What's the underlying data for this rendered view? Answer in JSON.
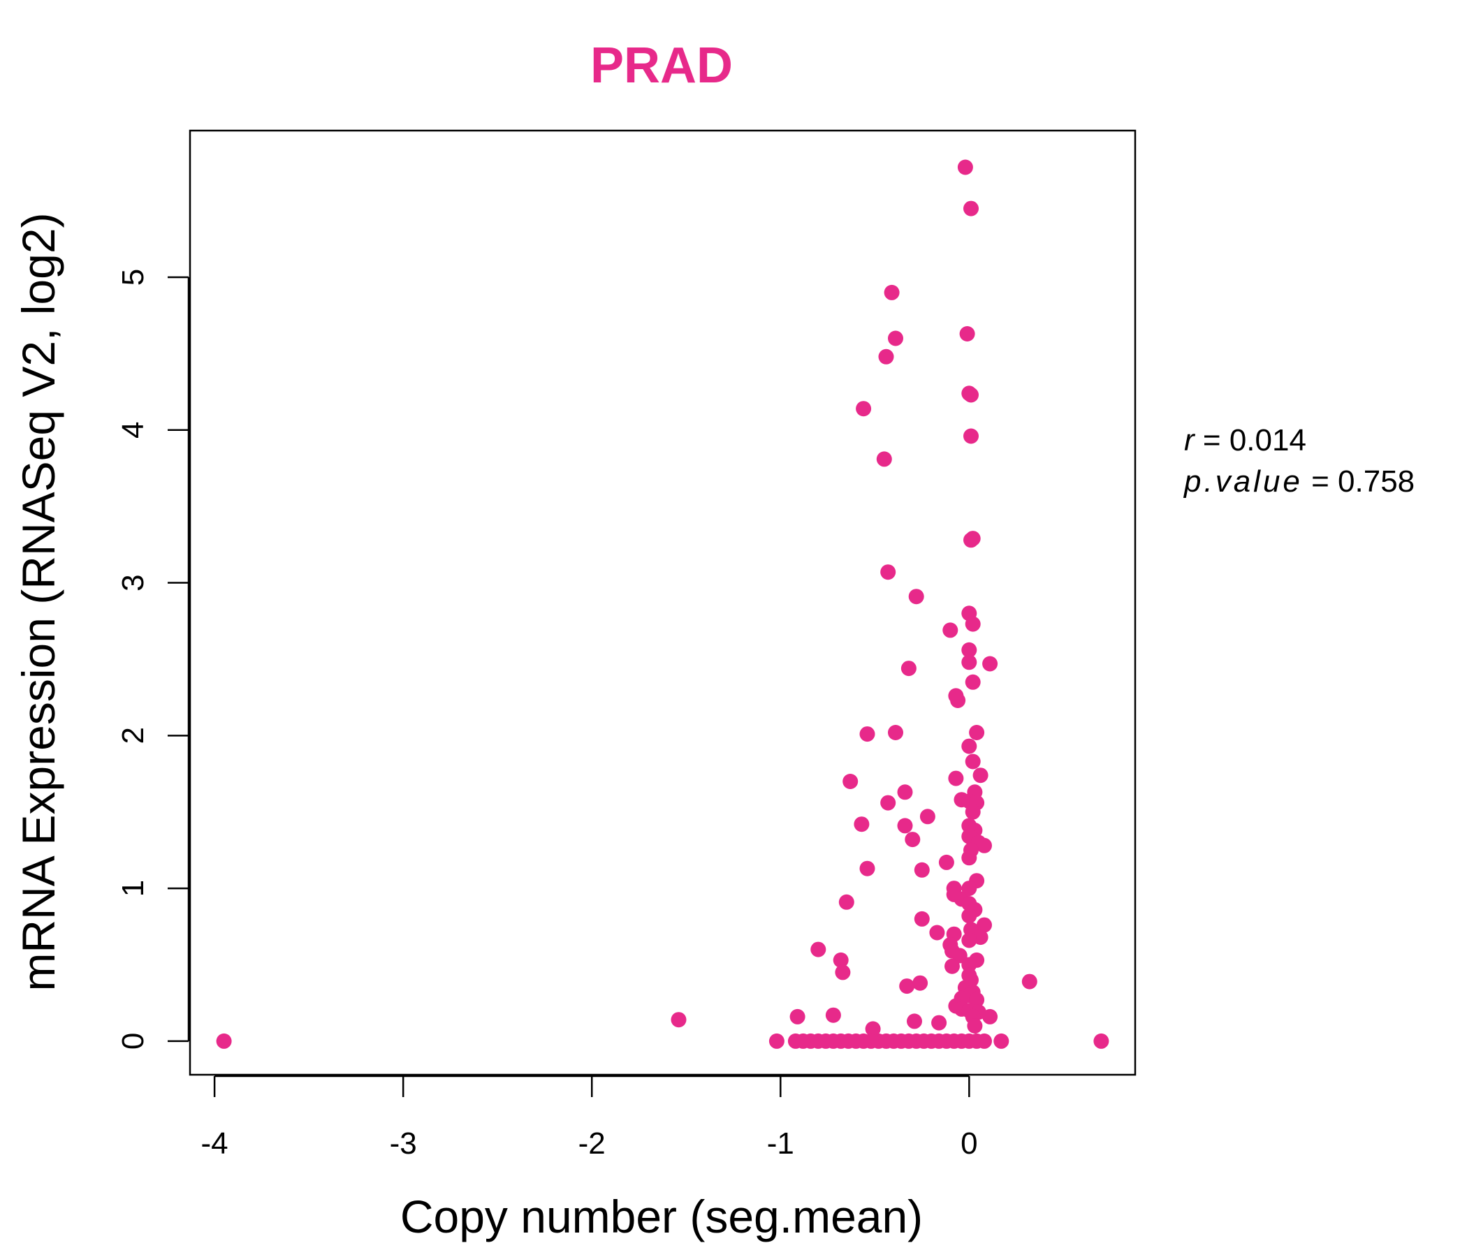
{
  "chart_data": {
    "type": "scatter",
    "title": "PRAD",
    "xlabel": "Copy number (seg.mean)",
    "ylabel": "mRNA Expression (RNASeq V2, log2)",
    "xlim": [
      -4.13,
      0.88
    ],
    "ylim": [
      -0.22,
      5.96
    ],
    "xticks": [
      -4,
      -3,
      -2,
      -1,
      0
    ],
    "xtick_labels": [
      "-4",
      "-3",
      "-2",
      "-1",
      "0"
    ],
    "yticks": [
      0,
      1,
      2,
      3,
      4,
      5
    ],
    "ytick_labels": [
      "0",
      "1",
      "2",
      "3",
      "4",
      "5"
    ],
    "grid": false,
    "colors": {
      "points": "#E7298A",
      "title": "#E7298A",
      "axis": "#000000"
    },
    "stats": {
      "r_label": "r",
      "r_value": "0.014",
      "p_label": "p.value",
      "p_value": "0.758"
    },
    "points": [
      [
        -3.95,
        0
      ],
      [
        -1.54,
        0.14
      ],
      [
        0.7,
        0
      ],
      [
        0.32,
        0.39
      ],
      [
        0.17,
        0
      ],
      [
        0.11,
        0.16
      ],
      [
        0.11,
        2.47
      ],
      [
        -0.02,
        5.72
      ],
      [
        0.01,
        5.45
      ],
      [
        -0.41,
        4.9
      ],
      [
        -0.39,
        4.6
      ],
      [
        -0.44,
        4.48
      ],
      [
        -0.01,
        4.63
      ],
      [
        0.0,
        4.24
      ],
      [
        0.01,
        4.23
      ],
      [
        -0.56,
        4.14
      ],
      [
        0.01,
        3.96
      ],
      [
        -0.45,
        3.81
      ],
      [
        0.01,
        3.28
      ],
      [
        0.02,
        3.29
      ],
      [
        -0.43,
        3.07
      ],
      [
        -0.28,
        2.91
      ],
      [
        0.0,
        2.8
      ],
      [
        0.02,
        2.73
      ],
      [
        -0.1,
        2.69
      ],
      [
        0.0,
        2.56
      ],
      [
        -0.32,
        2.44
      ],
      [
        0.0,
        2.48
      ],
      [
        0.02,
        2.35
      ],
      [
        -0.07,
        2.26
      ],
      [
        -0.06,
        2.23
      ],
      [
        -0.54,
        2.01
      ],
      [
        -0.39,
        2.02
      ],
      [
        0.04,
        2.02
      ],
      [
        0.0,
        1.93
      ],
      [
        0.02,
        1.83
      ],
      [
        -0.63,
        1.7
      ],
      [
        -0.07,
        1.72
      ],
      [
        0.06,
        1.74
      ],
      [
        -0.34,
        1.63
      ],
      [
        0.03,
        1.63
      ],
      [
        -0.43,
        1.56
      ],
      [
        -0.04,
        1.58
      ],
      [
        0.0,
        1.57
      ],
      [
        0.04,
        1.56
      ],
      [
        0.02,
        1.5
      ],
      [
        -0.22,
        1.47
      ],
      [
        -0.57,
        1.42
      ],
      [
        -0.34,
        1.41
      ],
      [
        0.0,
        1.41
      ],
      [
        0.03,
        1.38
      ],
      [
        0.0,
        1.34
      ],
      [
        -0.3,
        1.32
      ],
      [
        0.02,
        1.32
      ],
      [
        0.05,
        1.3
      ],
      [
        0.08,
        1.28
      ],
      [
        0.01,
        1.25
      ],
      [
        0.0,
        1.2
      ],
      [
        -0.12,
        1.17
      ],
      [
        -0.54,
        1.13
      ],
      [
        -0.25,
        1.12
      ],
      [
        0.04,
        1.05
      ],
      [
        -0.08,
        1.0
      ],
      [
        -0.08,
        0.96
      ],
      [
        0.0,
        1.0
      ],
      [
        -0.04,
        0.93
      ],
      [
        0.0,
        0.9
      ],
      [
        -0.65,
        0.91
      ],
      [
        0.03,
        0.86
      ],
      [
        0.0,
        0.82
      ],
      [
        -0.25,
        0.8
      ],
      [
        0.08,
        0.76
      ],
      [
        0.01,
        0.73
      ],
      [
        -0.17,
        0.71
      ],
      [
        -0.08,
        0.7
      ],
      [
        0.06,
        0.68
      ],
      [
        0.0,
        0.66
      ],
      [
        -0.1,
        0.63
      ],
      [
        -0.09,
        0.59
      ],
      [
        -0.8,
        0.6
      ],
      [
        -0.05,
        0.56
      ],
      [
        -0.68,
        0.53
      ],
      [
        0.04,
        0.53
      ],
      [
        0.0,
        0.5
      ],
      [
        -0.09,
        0.49
      ],
      [
        -0.67,
        0.45
      ],
      [
        0.0,
        0.43
      ],
      [
        0.01,
        0.4
      ],
      [
        -0.26,
        0.38
      ],
      [
        -0.33,
        0.36
      ],
      [
        -0.02,
        0.35
      ],
      [
        0.02,
        0.32
      ],
      [
        0.0,
        0.3
      ],
      [
        -0.04,
        0.28
      ],
      [
        0.04,
        0.27
      ],
      [
        -0.07,
        0.23
      ],
      [
        -0.04,
        0.21
      ],
      [
        0.0,
        0.2
      ],
      [
        0.05,
        0.19
      ],
      [
        -0.72,
        0.17
      ],
      [
        -0.91,
        0.16
      ],
      [
        0.02,
        0.16
      ],
      [
        -0.29,
        0.13
      ],
      [
        -0.16,
        0.12
      ],
      [
        0.03,
        0.1
      ],
      [
        -0.51,
        0.08
      ],
      [
        -1.02,
        0
      ],
      [
        -0.92,
        0
      ],
      [
        -0.88,
        0
      ],
      [
        -0.84,
        0
      ],
      [
        -0.8,
        0
      ],
      [
        -0.76,
        0
      ],
      [
        -0.72,
        0
      ],
      [
        -0.68,
        0
      ],
      [
        -0.64,
        0
      ],
      [
        -0.6,
        0
      ],
      [
        -0.56,
        0
      ],
      [
        -0.52,
        0
      ],
      [
        -0.48,
        0
      ],
      [
        -0.44,
        0
      ],
      [
        -0.4,
        0
      ],
      [
        -0.36,
        0
      ],
      [
        -0.32,
        0
      ],
      [
        -0.28,
        0
      ],
      [
        -0.24,
        0
      ],
      [
        -0.2,
        0
      ],
      [
        -0.16,
        0
      ],
      [
        -0.12,
        0
      ],
      [
        -0.08,
        0
      ],
      [
        -0.04,
        0
      ],
      [
        0.0,
        0
      ],
      [
        0.04,
        0
      ],
      [
        0.08,
        0
      ]
    ]
  }
}
